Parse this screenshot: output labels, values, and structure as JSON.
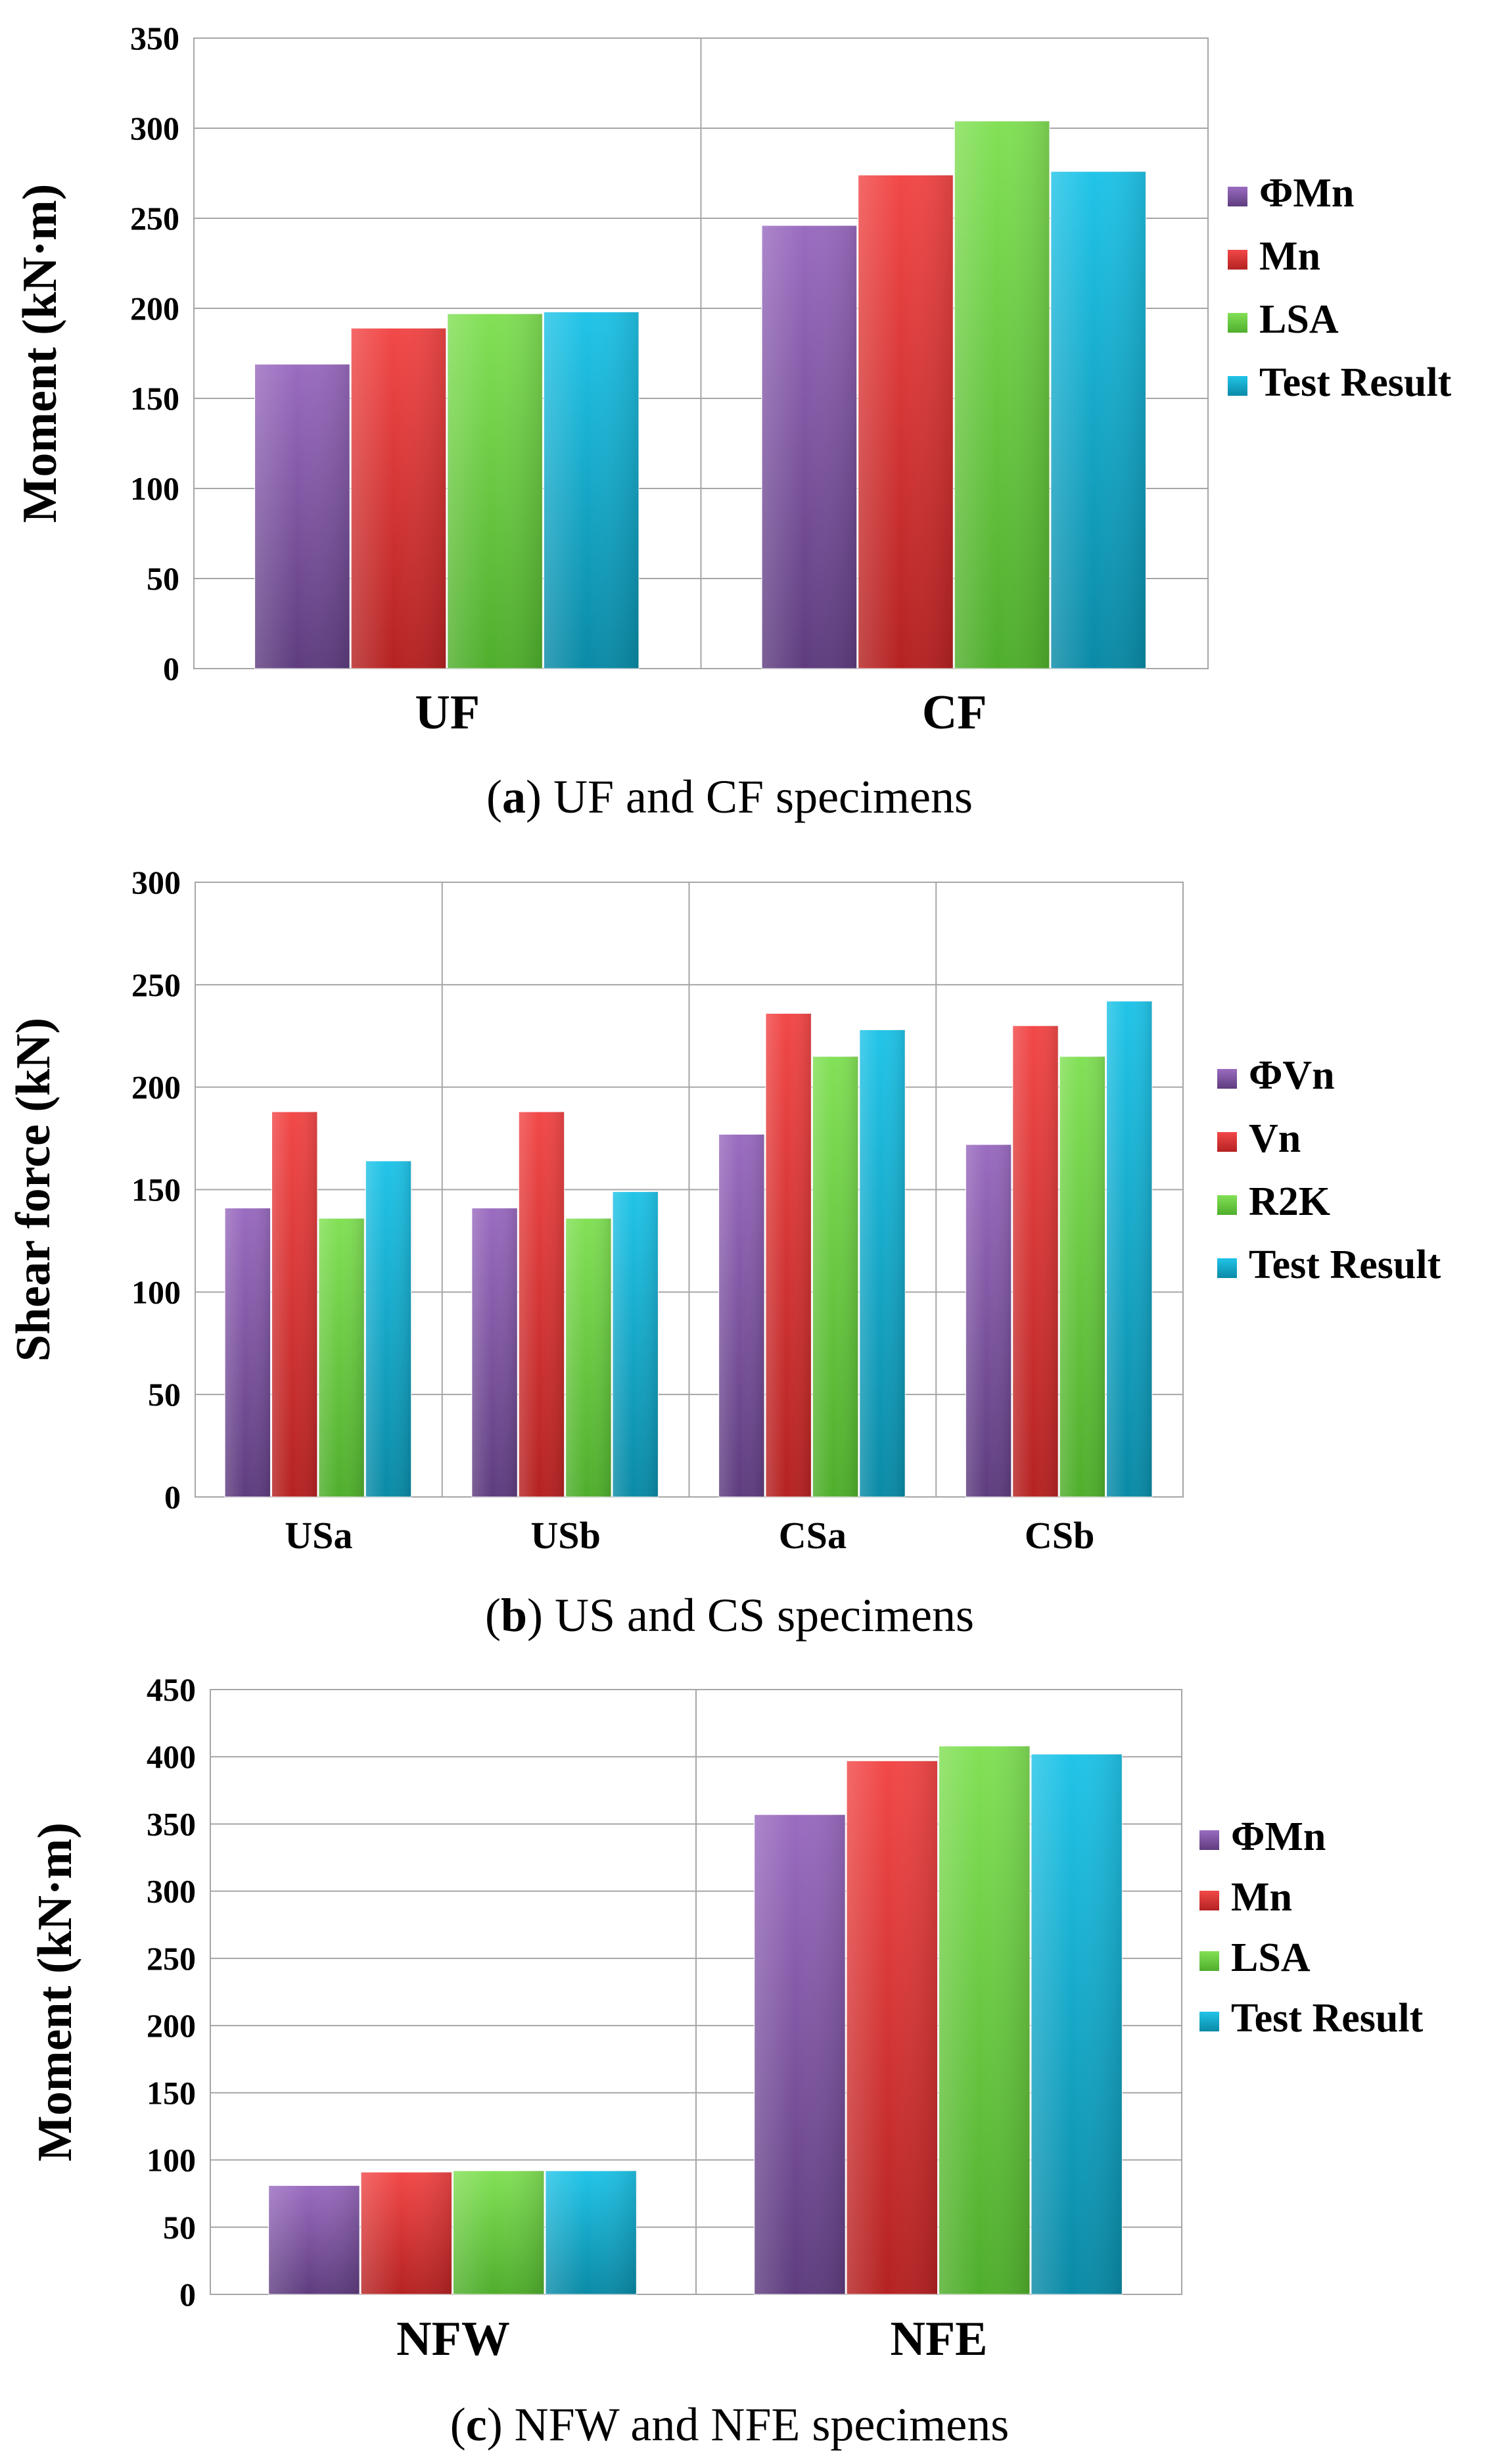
{
  "colors": {
    "purple": "#8a5aaa",
    "red": "#e6393a",
    "green": "#72d446",
    "cyan": "#1ebadc",
    "grid": "#a6a6a6"
  },
  "chart_data": [
    {
      "type": "bar",
      "caption_letter": "a",
      "caption_text": " UF and CF specimens",
      "ylabel": "Moment (kN·m)",
      "ylim": [
        0,
        350
      ],
      "yticks": [
        "0",
        "50",
        "100",
        "150",
        "200",
        "250",
        "300",
        "350"
      ],
      "categories": [
        "UF",
        "CF"
      ],
      "series": [
        {
          "name": "ΦMn",
          "color": "purple",
          "values": [
            169,
            246
          ]
        },
        {
          "name": "Mn",
          "color": "red",
          "values": [
            189,
            274
          ]
        },
        {
          "name": "LSA",
          "color": "green",
          "values": [
            197,
            304
          ]
        },
        {
          "name": "Test Result",
          "color": "cyan",
          "values": [
            198,
            276
          ]
        }
      ]
    },
    {
      "type": "bar",
      "caption_letter": "b",
      "caption_text": " US and CS specimens",
      "ylabel": "Shear force (kN)",
      "ylim": [
        0,
        300
      ],
      "yticks": [
        "0",
        "50",
        "100",
        "150",
        "200",
        "250",
        "300"
      ],
      "categories": [
        "USa",
        "USb",
        "CSa",
        "CSb"
      ],
      "series": [
        {
          "name": "ΦVn",
          "color": "purple",
          "values": [
            141,
            141,
            177,
            172
          ]
        },
        {
          "name": "Vn",
          "color": "red",
          "values": [
            188,
            188,
            236,
            230
          ]
        },
        {
          "name": "R2K",
          "color": "green",
          "values": [
            136,
            136,
            215,
            215
          ]
        },
        {
          "name": "Test Result",
          "color": "cyan",
          "values": [
            164,
            149,
            228,
            242
          ]
        }
      ]
    },
    {
      "type": "bar",
      "caption_letter": "c",
      "caption_text": " NFW and NFE specimens",
      "ylabel": "Moment (kN·m)",
      "ylim": [
        0,
        450
      ],
      "yticks": [
        "0",
        "50",
        "100",
        "150",
        "200",
        "250",
        "300",
        "350",
        "400",
        "450"
      ],
      "categories": [
        "NFW",
        "NFE"
      ],
      "series": [
        {
          "name": "ΦMn",
          "color": "purple",
          "values": [
            81,
            357
          ]
        },
        {
          "name": "Mn",
          "color": "red",
          "values": [
            91,
            397
          ]
        },
        {
          "name": "LSA",
          "color": "green",
          "values": [
            92,
            408
          ]
        },
        {
          "name": "Test Result",
          "color": "cyan",
          "values": [
            92,
            402
          ]
        }
      ]
    }
  ]
}
